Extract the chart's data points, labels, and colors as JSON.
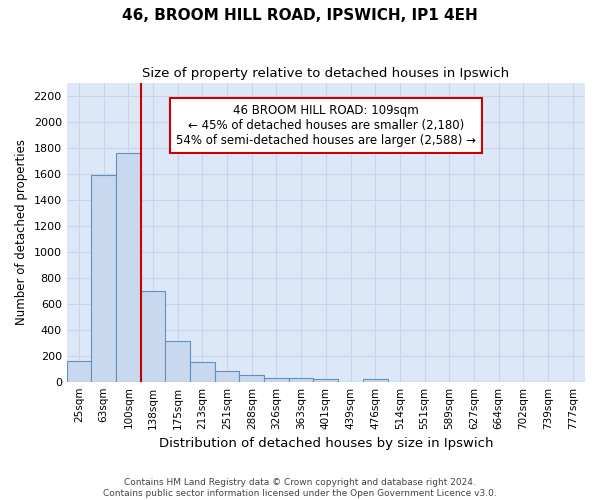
{
  "title": "46, BROOM HILL ROAD, IPSWICH, IP1 4EH",
  "subtitle": "Size of property relative to detached houses in Ipswich",
  "xlabel": "Distribution of detached houses by size in Ipswich",
  "ylabel": "Number of detached properties",
  "categories": [
    "25sqm",
    "63sqm",
    "100sqm",
    "138sqm",
    "175sqm",
    "213sqm",
    "251sqm",
    "288sqm",
    "326sqm",
    "363sqm",
    "401sqm",
    "439sqm",
    "476sqm",
    "514sqm",
    "551sqm",
    "589sqm",
    "627sqm",
    "664sqm",
    "702sqm",
    "739sqm",
    "777sqm"
  ],
  "values": [
    160,
    1590,
    1760,
    700,
    315,
    155,
    80,
    50,
    30,
    25,
    20,
    0,
    20,
    0,
    0,
    0,
    0,
    0,
    0,
    0,
    0
  ],
  "bar_color": "#c8d8ee",
  "bar_edge_color": "#6090c0",
  "vline_color": "#cc0000",
  "annotation_text": "46 BROOM HILL ROAD: 109sqm\n← 45% of detached houses are smaller (2,180)\n54% of semi-detached houses are larger (2,588) →",
  "annotation_box_color": "#ffffff",
  "annotation_box_edge": "#cc0000",
  "ylim": [
    0,
    2300
  ],
  "yticks": [
    0,
    200,
    400,
    600,
    800,
    1000,
    1200,
    1400,
    1600,
    1800,
    2000,
    2200
  ],
  "grid_color": "#c8d4e8",
  "plot_bg_color": "#dce8f8",
  "fig_bg_color": "#ffffff",
  "footer_line1": "Contains HM Land Registry data © Crown copyright and database right 2024.",
  "footer_line2": "Contains public sector information licensed under the Open Government Licence v3.0."
}
